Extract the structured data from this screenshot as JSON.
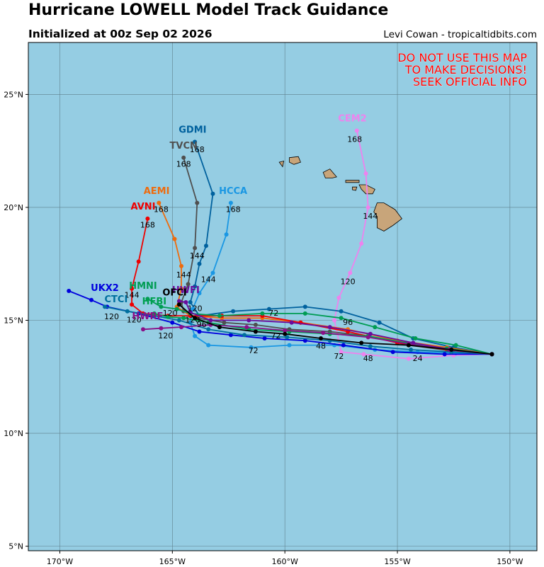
{
  "header": {
    "title": "Hurricane LOWELL Model Track Guidance",
    "initialized": "Initialized at 00z Sep 02 2026",
    "credit": "Levi Cowan - tropicaltidbits.com"
  },
  "warning": {
    "line1": "DO NOT USE THIS MAP",
    "line2": "TO MAKE DECISIONS!",
    "line3": "SEEK OFFICIAL INFO",
    "color": "#ff0000"
  },
  "map": {
    "ocean_color": "#95cde3",
    "land_color": "#c8a57a",
    "lon_range": [
      -171.4,
      -148.8
    ],
    "lat_range": [
      4.8,
      27.3
    ],
    "lon_ticks": [
      {
        "value": -170,
        "label": "170°W"
      },
      {
        "value": -165,
        "label": "165°W"
      },
      {
        "value": -160,
        "label": "160°W"
      },
      {
        "value": -155,
        "label": "155°W"
      },
      {
        "value": -150,
        "label": "150°W"
      }
    ],
    "lat_ticks": [
      {
        "value": 5,
        "label": "5°N"
      },
      {
        "value": 10,
        "label": "10°N"
      },
      {
        "value": 15,
        "label": "15°N"
      },
      {
        "value": 20,
        "label": "20°N"
      },
      {
        "value": 25,
        "label": "25°N"
      }
    ],
    "grid": true
  },
  "models": [
    {
      "name": "CEM2",
      "color": "#ee82ee",
      "label": {
        "lon": -157.0,
        "lat": 23.8
      },
      "track": [
        [
          -150.8,
          13.5
        ],
        [
          -152.5,
          13.45
        ],
        [
          -154.5,
          13.3
        ],
        [
          -156.5,
          13.5
        ],
        [
          -157.5,
          13.6
        ],
        [
          -157.8,
          15.0
        ],
        [
          -157.6,
          16.0
        ],
        [
          -157.1,
          17.1
        ],
        [
          -156.6,
          18.4
        ],
        [
          -156.3,
          20.0
        ],
        [
          -156.4,
          21.5
        ],
        [
          -156.8,
          23.4
        ]
      ],
      "hour_labels": [
        {
          "lon": -154.1,
          "lat": 13.2,
          "text": "24"
        },
        {
          "lon": -156.3,
          "lat": 13.2,
          "text": "48"
        },
        {
          "lon": -157.6,
          "lat": 13.3,
          "text": "72"
        },
        {
          "lon": -157.2,
          "lat": 14.8,
          "text": "96"
        },
        {
          "lon": -157.2,
          "lat": 16.6,
          "text": "120"
        },
        {
          "lon": -156.2,
          "lat": 19.5,
          "text": "144"
        },
        {
          "lon": -156.9,
          "lat": 22.9,
          "text": "168"
        }
      ]
    },
    {
      "name": "GDMI",
      "color": "#00619e",
      "label": {
        "lon": -164.1,
        "lat": 23.3
      },
      "track": [
        [
          -150.8,
          13.5
        ],
        [
          -152.5,
          13.8
        ],
        [
          -154.3,
          14.2
        ],
        [
          -155.8,
          14.9
        ],
        [
          -157.5,
          15.4
        ],
        [
          -159.1,
          15.6
        ],
        [
          -160.7,
          15.5
        ],
        [
          -162.3,
          15.4
        ],
        [
          -163.8,
          15.2
        ],
        [
          -164.2,
          15.8
        ],
        [
          -164.0,
          16.5
        ],
        [
          -163.8,
          17.5
        ],
        [
          -163.5,
          18.3
        ],
        [
          -163.2,
          20.6
        ],
        [
          -164.0,
          22.9
        ]
      ],
      "hour_labels": [
        {
          "lon": -163.9,
          "lat": 22.45,
          "text": "168"
        }
      ]
    },
    {
      "name": "TVCN",
      "color": "#4f4f4f",
      "label": {
        "lon": -164.5,
        "lat": 22.6
      },
      "track": [
        [
          -150.8,
          13.5
        ],
        [
          -152.6,
          13.65
        ],
        [
          -154.5,
          13.9
        ],
        [
          -156.3,
          14.3
        ],
        [
          -158.0,
          14.5
        ],
        [
          -159.8,
          14.6
        ],
        [
          -161.3,
          14.8
        ],
        [
          -162.7,
          14.9
        ],
        [
          -163.9,
          15.1
        ],
        [
          -164.5,
          15.4
        ],
        [
          -164.6,
          15.8
        ],
        [
          -164.3,
          16.6
        ],
        [
          -164.0,
          18.2
        ],
        [
          -163.9,
          20.2
        ],
        [
          -164.5,
          22.2
        ]
      ],
      "hour_labels": [
        {
          "lon": -164.5,
          "lat": 21.8,
          "text": "168"
        },
        {
          "lon": -163.9,
          "lat": 17.75,
          "text": "144"
        }
      ]
    },
    {
      "name": "HCCA",
      "color": "#1a97e3",
      "label": {
        "lon": -162.3,
        "lat": 20.6
      },
      "track": [
        [
          -150.8,
          13.5
        ],
        [
          -152.4,
          13.55
        ],
        [
          -154.1,
          13.6
        ],
        [
          -156.0,
          13.7
        ],
        [
          -157.8,
          13.9
        ],
        [
          -159.8,
          13.9
        ],
        [
          -161.5,
          13.8
        ],
        [
          -163.4,
          13.9
        ],
        [
          -164.0,
          14.3
        ],
        [
          -164.2,
          14.9
        ],
        [
          -164.1,
          15.5
        ],
        [
          -163.8,
          16.2
        ],
        [
          -163.2,
          17.1
        ],
        [
          -162.6,
          18.8
        ],
        [
          -162.4,
          20.2
        ]
      ],
      "hour_labels": [
        {
          "lon": -162.3,
          "lat": 19.8,
          "text": "168"
        },
        {
          "lon": -163.4,
          "lat": 16.7,
          "text": "144"
        },
        {
          "lon": -161.4,
          "lat": 13.55,
          "text": "72"
        }
      ]
    },
    {
      "name": "AEMI",
      "color": "#ee6b0d",
      "label": {
        "lon": -165.7,
        "lat": 20.6
      },
      "track": [
        [
          -150.8,
          13.5
        ],
        [
          -152.8,
          13.8
        ],
        [
          -155.0,
          14.1
        ],
        [
          -157.2,
          14.6
        ],
        [
          -159.3,
          14.9
        ],
        [
          -161.0,
          15.1
        ],
        [
          -162.8,
          15.1
        ],
        [
          -164.2,
          15.2
        ],
        [
          -164.8,
          15.6
        ],
        [
          -164.6,
          16.4
        ],
        [
          -164.6,
          17.4
        ],
        [
          -164.9,
          18.6
        ],
        [
          -165.6,
          20.2
        ]
      ],
      "hour_labels": [
        {
          "lon": -165.5,
          "lat": 19.8,
          "text": "168"
        },
        {
          "lon": -164.5,
          "lat": 16.9,
          "text": "144"
        }
      ]
    },
    {
      "name": "AVNI",
      "color": "#ee0000",
      "label": {
        "lon": -166.3,
        "lat": 19.9
      },
      "track": [
        [
          -150.8,
          13.5
        ],
        [
          -152.8,
          13.7
        ],
        [
          -155.0,
          14.0
        ],
        [
          -157.2,
          14.5
        ],
        [
          -159.3,
          14.9
        ],
        [
          -161.0,
          15.2
        ],
        [
          -162.8,
          15.2
        ],
        [
          -164.2,
          15.2
        ],
        [
          -165.2,
          15.2
        ],
        [
          -166.3,
          15.3
        ],
        [
          -166.8,
          15.7
        ],
        [
          -166.8,
          16.4
        ],
        [
          -166.5,
          17.6
        ],
        [
          -166.1,
          19.5
        ]
      ],
      "hour_labels": [
        {
          "lon": -166.1,
          "lat": 19.1,
          "text": "168"
        },
        {
          "lon": -166.8,
          "lat": 16.0,
          "text": "144"
        },
        {
          "lon": -160.5,
          "lat": 15.2,
          "text": "72"
        }
      ]
    },
    {
      "name": "UKX2",
      "color": "#0000dd",
      "label": {
        "lon": -168.0,
        "lat": 16.3
      },
      "track": [
        [
          -150.8,
          13.5
        ],
        [
          -152.9,
          13.5
        ],
        [
          -155.2,
          13.6
        ],
        [
          -157.4,
          13.9
        ],
        [
          -159.1,
          14.1
        ],
        [
          -160.9,
          14.2
        ],
        [
          -162.4,
          14.35
        ],
        [
          -163.8,
          14.5
        ],
        [
          -165.0,
          14.9
        ],
        [
          -166.5,
          15.3
        ],
        [
          -167.9,
          15.6
        ],
        [
          -168.6,
          15.9
        ],
        [
          -169.6,
          16.3
        ]
      ],
      "hour_labels": [
        {
          "lon": -167.7,
          "lat": 15.05,
          "text": "120"
        }
      ]
    },
    {
      "name": "CTCI",
      "color": "#006f9e",
      "label": {
        "lon": -167.5,
        "lat": 15.8
      },
      "track": [
        [
          -150.8,
          13.5
        ],
        [
          -152.6,
          13.6
        ],
        [
          -154.4,
          13.7
        ],
        [
          -156.2,
          13.85
        ],
        [
          -158.0,
          14.1
        ],
        [
          -159.9,
          14.25
        ],
        [
          -161.8,
          14.35
        ],
        [
          -163.4,
          14.6
        ],
        [
          -164.7,
          15.0
        ],
        [
          -165.8,
          15.2
        ],
        [
          -167.0,
          15.4
        ],
        [
          -168.0,
          15.6
        ]
      ],
      "hour_labels": [
        {
          "lon": -166.7,
          "lat": 14.9,
          "text": "120"
        }
      ]
    },
    {
      "name": "HMNI",
      "color": "#009c53",
      "label": {
        "lon": -166.3,
        "lat": 16.4
      },
      "track": [
        [
          -150.8,
          13.5
        ],
        [
          -152.4,
          13.9
        ],
        [
          -154.2,
          14.2
        ],
        [
          -156.0,
          14.7
        ],
        [
          -157.5,
          15.1
        ],
        [
          -159.1,
          15.3
        ],
        [
          -161.0,
          15.3
        ],
        [
          -162.9,
          15.2
        ],
        [
          -164.2,
          15.3
        ],
        [
          -164.8,
          15.5
        ],
        [
          -165.5,
          15.6
        ],
        [
          -166.1,
          15.95
        ]
      ],
      "hour_labels": [
        {
          "lon": -165.1,
          "lat": 15.2,
          "text": "120"
        }
      ]
    },
    {
      "name": "HFBI",
      "color": "#00a050",
      "label": {
        "lon": -165.8,
        "lat": 15.7
      },
      "track": [
        [
          -150.8,
          13.5
        ],
        [
          -152.8,
          13.75
        ],
        [
          -154.6,
          14.0
        ],
        [
          -156.3,
          14.3
        ],
        [
          -158.0,
          14.4
        ],
        [
          -159.8,
          14.5
        ],
        [
          -161.6,
          14.6
        ],
        [
          -163.4,
          14.9
        ],
        [
          -164.5,
          15.1
        ],
        [
          -165.2,
          15.15
        ],
        [
          -165.8,
          15.3
        ]
      ],
      "hour_labels": [
        {
          "lon": -164.1,
          "lat": 14.9,
          "text": "120"
        }
      ]
    },
    {
      "name": "HWFI",
      "color": "#6a0c9c",
      "label": {
        "lon": -164.4,
        "lat": 16.2
      },
      "track": [
        [
          -150.8,
          13.5
        ],
        [
          -152.6,
          13.7
        ],
        [
          -154.3,
          14.0
        ],
        [
          -156.2,
          14.4
        ],
        [
          -158.0,
          14.7
        ],
        [
          -159.7,
          14.9
        ],
        [
          -161.6,
          15.0
        ],
        [
          -163.3,
          15.0
        ],
        [
          -164.2,
          15.35
        ],
        [
          -164.4,
          15.8
        ],
        [
          -164.7,
          15.85
        ]
      ],
      "hour_labels": [
        {
          "lon": -164.0,
          "lat": 15.4,
          "text": "120"
        }
      ]
    },
    {
      "name": "HWRF",
      "color": "#8a1088",
      "label": {
        "lon": -166.1,
        "lat": 15.05
      },
      "track": [
        [
          -150.8,
          13.5
        ],
        [
          -152.7,
          13.7
        ],
        [
          -154.5,
          13.95
        ],
        [
          -156.3,
          14.25
        ],
        [
          -158.3,
          14.45
        ],
        [
          -160.0,
          14.55
        ],
        [
          -161.7,
          14.7
        ],
        [
          -163.3,
          14.8
        ],
        [
          -164.6,
          14.7
        ],
        [
          -165.5,
          14.65
        ],
        [
          -166.3,
          14.6
        ]
      ],
      "hour_labels": [
        {
          "lon": -165.3,
          "lat": 14.2,
          "text": "120"
        }
      ]
    },
    {
      "name": "OFCI",
      "color": "#000000",
      "label": {
        "lon": -164.9,
        "lat": 16.1
      },
      "track": [
        [
          -150.8,
          13.5
        ],
        [
          -152.6,
          13.7
        ],
        [
          -154.5,
          13.9
        ],
        [
          -156.6,
          14.0
        ],
        [
          -158.4,
          14.2
        ],
        [
          -160.0,
          14.4
        ],
        [
          -161.3,
          14.5
        ],
        [
          -162.9,
          14.7
        ],
        [
          -164.0,
          15.1
        ],
        [
          -164.7,
          15.7
        ]
      ],
      "hour_labels": [
        {
          "lon": -158.4,
          "lat": 13.75,
          "text": "48"
        },
        {
          "lon": -160.4,
          "lat": 14.2,
          "text": "72"
        },
        {
          "lon": -163.7,
          "lat": 14.7,
          "text": "96"
        }
      ]
    }
  ]
}
